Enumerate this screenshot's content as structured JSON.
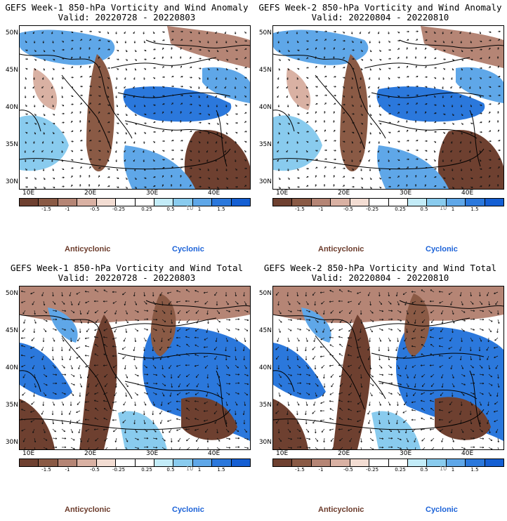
{
  "legend": {
    "labels": [
      "-1.5",
      "-1",
      "-0.5",
      "-0.25",
      "0.25",
      "0.5",
      "1",
      "1.5"
    ],
    "units": "10",
    "anticyclonic": "Anticyclonic",
    "cyclonic": "Cyclonic",
    "colors": [
      "#6e4030",
      "#8a5a45",
      "#b58575",
      "#d9b1a3",
      "#f3ddd3",
      "#ffffff",
      "#ffffff",
      "#c3ecf8",
      "#89cbee",
      "#5fa7e8",
      "#2b78dc",
      "#155fd3"
    ],
    "anticyclonic_color": "#6b3a2a",
    "cyclonic_color": "#1b62d8"
  },
  "axes": {
    "lat_labels": [
      "50N",
      "45N",
      "40N",
      "35N",
      "30N"
    ],
    "lon_labels": [
      "10E",
      "20E",
      "30E",
      "40E"
    ]
  },
  "panels": [
    {
      "title": "GEFS Week-1 850-hPa Vorticity and Wind Anomaly",
      "valid": "Valid: 20220728 - 20220803",
      "kind": "anomaly"
    },
    {
      "title": "GEFS Week-2 850-hPa Vorticity and Wind Anomaly",
      "valid": "Valid: 20220804 - 20220810",
      "kind": "anomaly"
    },
    {
      "title": "GEFS Week-1 850-hPa Vorticity and Wind Total",
      "valid": "Valid: 20220728 - 20220803",
      "kind": "total"
    },
    {
      "title": "GEFS Week-2 850-hPa Vorticity and Wind Total",
      "valid": "Valid: 20220804 - 20220810",
      "kind": "total"
    }
  ]
}
